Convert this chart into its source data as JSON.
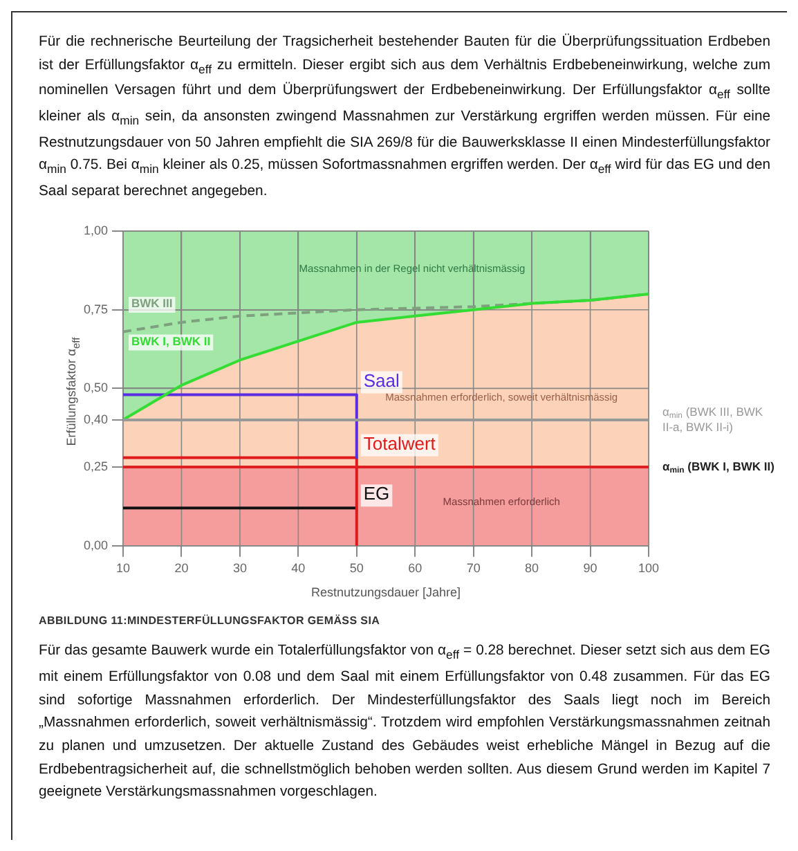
{
  "chart_data": {
    "type": "line",
    "xlabel": "Restnutzungsdauer [Jahre]",
    "ylabel": "Erfüllungsfaktor α$_{eff}$",
    "xlim": [
      10,
      100
    ],
    "xticks": [
      10,
      20,
      30,
      40,
      50,
      60,
      70,
      80,
      90,
      100
    ],
    "ylim": [
      0,
      1
    ],
    "yticks": [
      {
        "value": 0,
        "label": "0,00"
      },
      {
        "value": 0.25,
        "label": "0,25"
      },
      {
        "value": 0.4,
        "label": "0,40"
      },
      {
        "value": 0.5,
        "label": "0,50"
      },
      {
        "value": 0.75,
        "label": "0,75"
      },
      {
        "value": 1,
        "label": "1,00"
      }
    ],
    "grid": true,
    "legend": false,
    "marker": "none",
    "series": [
      {
        "name": "BWK I, BWK II",
        "color": "#33dd33",
        "x": [
          10,
          20,
          30,
          40,
          50,
          60,
          70,
          80,
          90,
          100
        ],
        "values": [
          0.4,
          0.51,
          0.59,
          0.65,
          0.71,
          0.73,
          0.75,
          0.77,
          0.78,
          0.8
        ]
      },
      {
        "type": "area",
        "color": "#fcd2b8",
        "x": [
          10,
          20,
          30,
          40,
          50,
          60,
          70,
          80,
          90,
          100
        ],
        "values": [
          0.4,
          0.51,
          0.59,
          0.65,
          0.71,
          0.73,
          0.75,
          0.77,
          0.78,
          0.8
        ]
      },
      {
        "name": "BWK III",
        "color": "#7fa07f",
        "line_style": "dashed",
        "x": [
          10,
          20,
          30,
          40,
          50,
          60,
          70,
          80,
          90,
          100
        ],
        "values": [
          0.68,
          0.71,
          0.73,
          0.74,
          0.75,
          0.755,
          0.76,
          0.77,
          0.78,
          0.8
        ]
      },
      {
        "name": "Saal",
        "color": "#5a2de0",
        "x": [
          10,
          50,
          50
        ],
        "values": [
          0.48,
          0.48,
          0.28
        ]
      },
      {
        "name": "Totalwert",
        "color": "#e01a1a",
        "x": [
          10,
          50,
          50
        ],
        "values": [
          0.28,
          0.28,
          0
        ]
      },
      {
        "name": "EG",
        "color": "#111111",
        "x": [
          10,
          50
        ],
        "values": [
          0.12,
          0.12
        ]
      }
    ],
    "bands": [
      {
        "axis": "y",
        "from": 0.25,
        "to": 1,
        "color": "#a3e6a8",
        "label": "Massnahmen in der Regel nicht verhältnismässig"
      },
      {
        "axis": "y",
        "from": 0,
        "to": 0.25,
        "color": "#f59c9c",
        "label": "Massnahmen erforderlich"
      }
    ],
    "ref_lines": [
      {
        "axis": "y",
        "value": 0.4,
        "color": "#999999",
        "label": "α$_{min}$ (BWK III, BWK II-a, BWK II-i)"
      },
      {
        "axis": "y",
        "value": 0.25,
        "color": "#e02020",
        "label": "α$_{min}$ (BWK I, BWK II)"
      }
    ],
    "annotations": [
      "Für die rechnerische Beurteilung der Tragsicherheit bestehender Bauten für die Überprüfungssituation Erdbeben ist der Erfüllungsfaktor α$_{eff}$ zu ermitteln. Dieser ergibt sich aus dem Verhältnis Erdbebeneinwirkung, welche zum nominellen Versagen führt und dem Überprüfungswert der Erdbebeneinwirkung. Der Erfüllungsfaktor α$_{eff}$ sollte kleiner als α$_{min}$ sein, da ansonsten zwingend Massnahmen zur Verstärkung ergriffen werden müssen. Für eine Restnutzungsdauer von 50 Jahren empfiehlt die SIA 269/8 für die Bauwerksklasse II einen Mindesterfüllungsfaktor α$_{min}$ 0.75. Bei α$_{min}$ kleiner als 0.25, müssen Sofortmassnahmen ergriffen werden. Der α$_{eff}$ wird für das EG und den Saal separat berechnet angegeben.",
      "Massnahmen erforderlich, soweit verhältnismässig",
      "ABBILDUNG 11:MINDESTERFÜLLUNGSFAKTOR GEMÄSS SIA",
      "Für das gesamte Bauwerk wurde ein Totalerfüllungsfaktor von α$_{eff}$ = 0.28 berechnet. Dieser setzt sich aus dem EG mit einem Erfüllungsfaktor von 0.08 und dem Saal mit einem Erfüllungsfaktor von 0.48 zusammen. Für das EG sind sofortige Massnahmen erforderlich. Der Mindesterfüllungsfaktor des Saals liegt noch im Bereich „Massnahmen erforderlich, soweit verhältnismässig“. Trotzdem wird empfohlen Verstärkungsmassnahmen zeitnah zu planen und umzusetzen. Der aktuelle Zustand des Gebäudes weist erhebliche Mängel in Bezug auf die Erdbebentragsicherheit auf, die schnellstmöglich behoben werden sollten. Aus diesem Grund werden im Kapitel 7 geeignete Verstärkungsmassnahmen vorgeschlagen."
    ]
  }
}
